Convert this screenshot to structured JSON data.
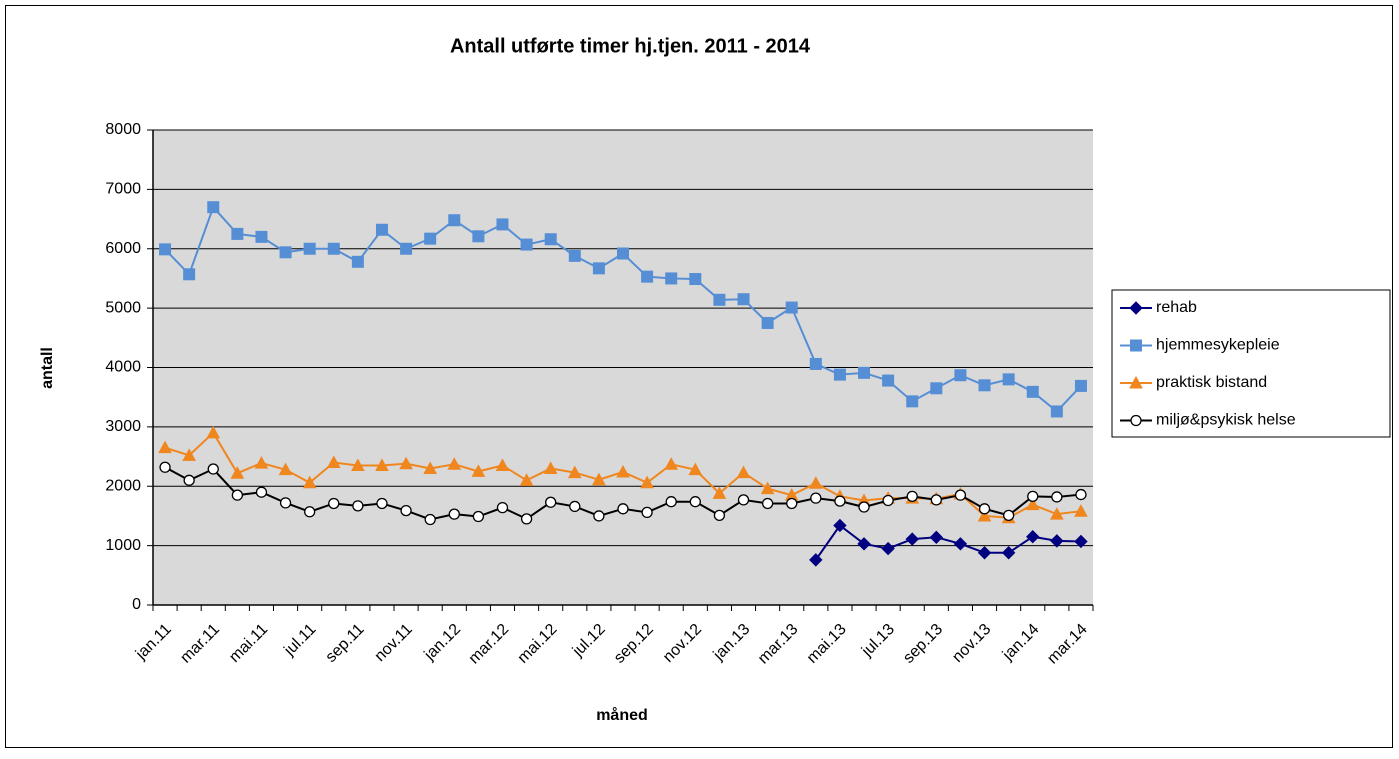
{
  "chart_data": {
    "type": "line",
    "title": "Antall utførte timer hj.tjen. 2011 - 2014",
    "x_label": "måned",
    "y_label": "antall",
    "categories": [
      "jan.11",
      null,
      "mar.11",
      null,
      "mai.11",
      null,
      "jul.11",
      null,
      "sep.11",
      null,
      "nov.11",
      null,
      "jan.12",
      null,
      "mar.12",
      null,
      "mai.12",
      null,
      "jul.12",
      null,
      "sep.12",
      null,
      "nov.12",
      null,
      "jan.13",
      null,
      "mar.13",
      null,
      "mai.13",
      null,
      "jul.13",
      null,
      "sep.13",
      null,
      "nov.13",
      null,
      "jan.14",
      null,
      "mar.14"
    ],
    "ylim": [
      0,
      8000
    ],
    "yticks": [
      0,
      1000,
      2000,
      3000,
      4000,
      5000,
      6000,
      7000,
      8000
    ],
    "grid": true,
    "legend": "right",
    "background": "#d9d9d9",
    "series": [
      {
        "name": "rehab",
        "color": "#000080",
        "marker": "diamond",
        "values": [
          null,
          null,
          null,
          null,
          null,
          null,
          null,
          null,
          null,
          null,
          null,
          null,
          null,
          null,
          null,
          null,
          null,
          null,
          null,
          null,
          null,
          null,
          null,
          null,
          null,
          null,
          null,
          760,
          1340,
          1030,
          950,
          1110,
          1140,
          1030,
          880,
          880,
          1150,
          1080,
          1070
        ]
      },
      {
        "name": "hjemmesykepleie",
        "color": "#558ed5",
        "marker": "square",
        "values": [
          5990,
          5570,
          6700,
          6250,
          6200,
          5940,
          6000,
          6000,
          5780,
          6320,
          6000,
          6170,
          6480,
          6210,
          6410,
          6070,
          6160,
          5880,
          5670,
          5920,
          5530,
          5500,
          5490,
          5140,
          5150,
          4750,
          5010,
          4060,
          3880,
          3910,
          3780,
          3430,
          3650,
          3870,
          3700,
          3800,
          3590,
          3260,
          3690
        ]
      },
      {
        "name": "praktisk bistand",
        "color": "#f0861e",
        "marker": "triangle",
        "values": [
          2650,
          2520,
          2900,
          2220,
          2390,
          2280,
          2060,
          2400,
          2350,
          2350,
          2380,
          2300,
          2370,
          2250,
          2350,
          2100,
          2300,
          2230,
          2110,
          2240,
          2060,
          2370,
          2280,
          1880,
          2230,
          1960,
          1850,
          2050,
          1830,
          1760,
          1800,
          1800,
          1790,
          1870,
          1500,
          1470,
          1690,
          1530,
          1580
        ]
      },
      {
        "name": "miljø&psykisk helse",
        "color": "#000000",
        "marker": "circle",
        "values": [
          2320,
          2100,
          2290,
          1850,
          1900,
          1720,
          1570,
          1710,
          1670,
          1710,
          1590,
          1440,
          1530,
          1490,
          1640,
          1450,
          1730,
          1660,
          1500,
          1620,
          1560,
          1740,
          1740,
          1510,
          1770,
          1710,
          1710,
          1800,
          1750,
          1650,
          1760,
          1830,
          1770,
          1850,
          1620,
          1510,
          1830,
          1820,
          1860
        ]
      }
    ]
  }
}
